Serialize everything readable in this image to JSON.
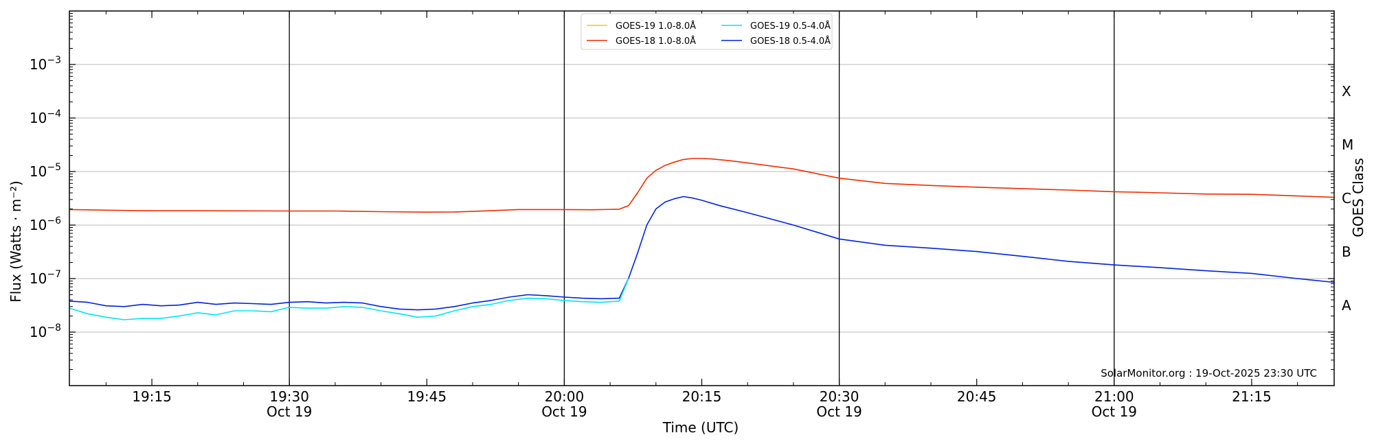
{
  "chart_data": {
    "type": "line",
    "title": "",
    "xlabel": "Time (UTC)",
    "ylabel": "Flux (Watts · m⁻²)",
    "ylabel_right": "GOES Class",
    "yscale": "log",
    "x_range": [
      "19:06",
      "21:24"
    ],
    "ylim": [
      1e-09,
      0.01
    ],
    "grid": "horizontal at decades; vertical lines every 30 minutes",
    "legend_position": "top-center",
    "x_ticks": [
      {
        "time": "19:15",
        "label": "19:15",
        "sublabel": ""
      },
      {
        "time": "19:30",
        "label": "19:30",
        "sublabel": "Oct 19"
      },
      {
        "time": "19:45",
        "label": "19:45",
        "sublabel": ""
      },
      {
        "time": "20:00",
        "label": "20:00",
        "sublabel": "Oct 19"
      },
      {
        "time": "20:15",
        "label": "20:15",
        "sublabel": ""
      },
      {
        "time": "20:30",
        "label": "20:30",
        "sublabel": "Oct 19"
      },
      {
        "time": "20:45",
        "label": "20:45",
        "sublabel": ""
      },
      {
        "time": "21:00",
        "label": "21:00",
        "sublabel": "Oct 19"
      },
      {
        "time": "21:15",
        "label": "21:15",
        "sublabel": ""
      }
    ],
    "vertical_lines": [
      "19:30",
      "20:00",
      "20:30",
      "21:00"
    ],
    "y_ticks": [
      {
        "value": 1e-08,
        "base": "10",
        "exp": "−8"
      },
      {
        "value": 1e-07,
        "base": "10",
        "exp": "−7"
      },
      {
        "value": 1e-06,
        "base": "10",
        "exp": "−6"
      },
      {
        "value": 1e-05,
        "base": "10",
        "exp": "−5"
      },
      {
        "value": 0.0001,
        "base": "10",
        "exp": "−4"
      },
      {
        "value": 0.001,
        "base": "10",
        "exp": "−3"
      }
    ],
    "goes_classes": [
      {
        "label": "A",
        "value": 3.16e-08
      },
      {
        "label": "B",
        "value": 3.16e-07
      },
      {
        "label": "C",
        "value": 3.16e-06
      },
      {
        "label": "M",
        "value": 3.16e-05
      },
      {
        "label": "X",
        "value": 0.000316
      }
    ],
    "legend": [
      {
        "name": "GOES-19 1.0-8.0Å",
        "color": "#f5c800"
      },
      {
        "name": "GOES-19 0.5-4.0Å",
        "color": "#00e5ee"
      },
      {
        "name": "GOES-18 1.0-8.0Å",
        "color": "#ee2c00"
      },
      {
        "name": "GOES-18 0.5-4.0Å",
        "color": "#0022dd"
      }
    ],
    "series": [
      {
        "name": "GOES-18 1.0-8.0Å",
        "color": "#ee2c00",
        "points": [
          [
            "19:06",
            1.95e-06
          ],
          [
            "19:10",
            1.9e-06
          ],
          [
            "19:15",
            1.85e-06
          ],
          [
            "19:20",
            1.85e-06
          ],
          [
            "19:25",
            1.84e-06
          ],
          [
            "19:30",
            1.83e-06
          ],
          [
            "19:35",
            1.83e-06
          ],
          [
            "19:40",
            1.78e-06
          ],
          [
            "19:45",
            1.74e-06
          ],
          [
            "19:48",
            1.76e-06
          ],
          [
            "19:50",
            1.8e-06
          ],
          [
            "19:55",
            1.95e-06
          ],
          [
            "20:00",
            1.95e-06
          ],
          [
            "20:03",
            1.93e-06
          ],
          [
            "20:06",
            1.98e-06
          ],
          [
            "20:07",
            2.3e-06
          ],
          [
            "20:08",
            4e-06
          ],
          [
            "20:09",
            7.5e-06
          ],
          [
            "20:10",
            1.05e-05
          ],
          [
            "20:11",
            1.3e-05
          ],
          [
            "20:12",
            1.5e-05
          ],
          [
            "20:13",
            1.68e-05
          ],
          [
            "20:14",
            1.75e-05
          ],
          [
            "20:15",
            1.75e-05
          ],
          [
            "20:16",
            1.72e-05
          ],
          [
            "20:18",
            1.6e-05
          ],
          [
            "20:20",
            1.45e-05
          ],
          [
            "20:25",
            1.12e-05
          ],
          [
            "20:30",
            7.5e-06
          ],
          [
            "20:35",
            6e-06
          ],
          [
            "20:40",
            5.5e-06
          ],
          [
            "20:45",
            5.1e-06
          ],
          [
            "20:50",
            4.8e-06
          ],
          [
            "20:55",
            4.5e-06
          ],
          [
            "21:00",
            4.2e-06
          ],
          [
            "21:05",
            4e-06
          ],
          [
            "21:10",
            3.8e-06
          ],
          [
            "21:15",
            3.75e-06
          ],
          [
            "21:20",
            3.5e-06
          ],
          [
            "21:24",
            3.3e-06
          ]
        ]
      },
      {
        "name": "GOES-18 0.5-4.0Å",
        "color": "#0022dd",
        "points": [
          [
            "19:06",
            3.8e-08
          ],
          [
            "19:08",
            3.6e-08
          ],
          [
            "19:10",
            3.1e-08
          ],
          [
            "19:12",
            3e-08
          ],
          [
            "19:14",
            3.3e-08
          ],
          [
            "19:16",
            3.1e-08
          ],
          [
            "19:18",
            3.2e-08
          ],
          [
            "19:20",
            3.6e-08
          ],
          [
            "19:22",
            3.3e-08
          ],
          [
            "19:24",
            3.5e-08
          ],
          [
            "19:26",
            3.4e-08
          ],
          [
            "19:28",
            3.3e-08
          ],
          [
            "19:30",
            3.6e-08
          ],
          [
            "19:32",
            3.7e-08
          ],
          [
            "19:34",
            3.5e-08
          ],
          [
            "19:36",
            3.6e-08
          ],
          [
            "19:38",
            3.5e-08
          ],
          [
            "19:40",
            3e-08
          ],
          [
            "19:42",
            2.7e-08
          ],
          [
            "19:44",
            2.6e-08
          ],
          [
            "19:46",
            2.7e-08
          ],
          [
            "19:48",
            3e-08
          ],
          [
            "19:50",
            3.5e-08
          ],
          [
            "19:52",
            3.9e-08
          ],
          [
            "19:54",
            4.5e-08
          ],
          [
            "19:56",
            5e-08
          ],
          [
            "19:58",
            4.8e-08
          ],
          [
            "20:00",
            4.5e-08
          ],
          [
            "20:02",
            4.3e-08
          ],
          [
            "20:04",
            4.2e-08
          ],
          [
            "20:06",
            4.3e-08
          ],
          [
            "20:07",
            1e-07
          ],
          [
            "20:08",
            3e-07
          ],
          [
            "20:09",
            1e-06
          ],
          [
            "20:10",
            2e-06
          ],
          [
            "20:11",
            2.7e-06
          ],
          [
            "20:12",
            3.1e-06
          ],
          [
            "20:13",
            3.4e-06
          ],
          [
            "20:14",
            3.2e-06
          ],
          [
            "20:15",
            2.9e-06
          ],
          [
            "20:17",
            2.3e-06
          ],
          [
            "20:20",
            1.7e-06
          ],
          [
            "20:25",
            1e-06
          ],
          [
            "20:30",
            5.5e-07
          ],
          [
            "20:35",
            4.2e-07
          ],
          [
            "20:40",
            3.7e-07
          ],
          [
            "20:45",
            3.2e-07
          ],
          [
            "20:50",
            2.6e-07
          ],
          [
            "20:55",
            2.1e-07
          ],
          [
            "21:00",
            1.8e-07
          ],
          [
            "21:05",
            1.6e-07
          ],
          [
            "21:10",
            1.4e-07
          ],
          [
            "21:15",
            1.25e-07
          ],
          [
            "21:20",
            1e-07
          ],
          [
            "21:24",
            8.5e-08
          ]
        ]
      },
      {
        "name": "GOES-19 0.5-4.0Å",
        "color": "#00e5ee",
        "points": [
          [
            "19:06",
            2.8e-08
          ],
          [
            "19:08",
            2.2e-08
          ],
          [
            "19:10",
            1.9e-08
          ],
          [
            "19:12",
            1.7e-08
          ],
          [
            "19:14",
            1.8e-08
          ],
          [
            "19:16",
            1.8e-08
          ],
          [
            "19:18",
            2e-08
          ],
          [
            "19:20",
            2.3e-08
          ],
          [
            "19:22",
            2.1e-08
          ],
          [
            "19:24",
            2.5e-08
          ],
          [
            "19:26",
            2.5e-08
          ],
          [
            "19:28",
            2.4e-08
          ],
          [
            "19:30",
            2.9e-08
          ],
          [
            "19:32",
            2.8e-08
          ],
          [
            "19:34",
            2.8e-08
          ],
          [
            "19:36",
            3e-08
          ],
          [
            "19:38",
            2.9e-08
          ],
          [
            "19:40",
            2.5e-08
          ],
          [
            "19:42",
            2.2e-08
          ],
          [
            "19:44",
            1.9e-08
          ],
          [
            "19:46",
            2e-08
          ],
          [
            "19:48",
            2.5e-08
          ],
          [
            "19:50",
            3e-08
          ],
          [
            "19:52",
            3.3e-08
          ],
          [
            "19:54",
            3.9e-08
          ],
          [
            "19:56",
            4.3e-08
          ],
          [
            "19:58",
            4.2e-08
          ],
          [
            "20:00",
            3.9e-08
          ],
          [
            "20:02",
            3.7e-08
          ],
          [
            "20:04",
            3.6e-08
          ],
          [
            "20:06",
            3.8e-08
          ],
          [
            "20:07",
            1e-07
          ]
        ]
      }
    ],
    "credit": "SolarMonitor.org : 19-Oct-2025 23:30 UTC"
  }
}
